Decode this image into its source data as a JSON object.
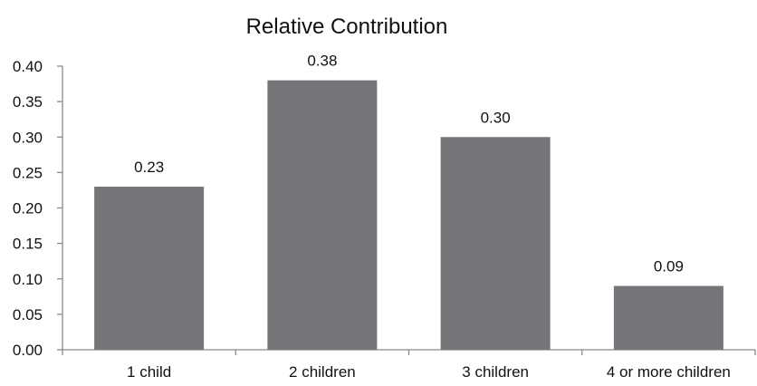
{
  "chart_data": {
    "type": "bar",
    "title": "Relative Contribution",
    "xlabel": "",
    "ylabel": "",
    "categories": [
      "1 child",
      "2 children",
      "3 children",
      "4 or more children"
    ],
    "values": [
      0.23,
      0.38,
      0.3,
      0.09
    ],
    "data_labels": [
      "0.23",
      "0.38",
      "0.30",
      "0.09"
    ],
    "ylim": [
      0,
      0.4
    ],
    "yticks": [
      "0.00",
      "0.05",
      "0.10",
      "0.15",
      "0.20",
      "0.25",
      "0.30",
      "0.35",
      "0.40"
    ],
    "grid": false,
    "legend": "none",
    "bar_color": "#76767a"
  }
}
